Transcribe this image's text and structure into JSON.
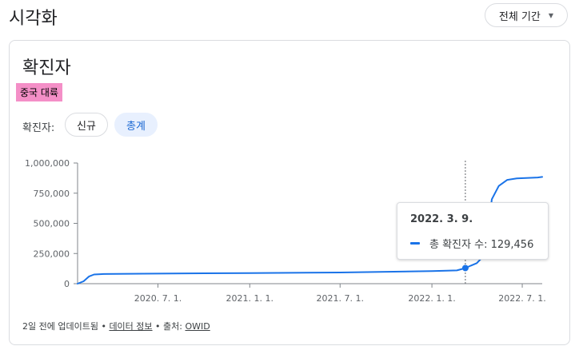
{
  "header": {
    "title": "시각화",
    "period_label": "전체 기간",
    "period_caret": "▼"
  },
  "card": {
    "title": "확진자",
    "region": "중국 대륙",
    "region_color": "#f48fc7",
    "filter_label": "확진자:",
    "chips": [
      {
        "label": "신규",
        "selected": false
      },
      {
        "label": "총계",
        "selected": true
      }
    ]
  },
  "tooltip": {
    "date": "2022. 3. 9.",
    "label": "총 확진자 수: 129,456"
  },
  "footer": {
    "updated": "2일 전에 업데이트됨",
    "sep1": " • ",
    "info_link": "데이터 정보",
    "sep2": " • 출처: ",
    "source_link": "OWID"
  },
  "chart_data": {
    "type": "line",
    "series": [
      {
        "name": "총 확진자 수",
        "color": "#1a73e8",
        "points": [
          [
            "2020-01-22",
            0
          ],
          [
            "2020-02-03",
            20000
          ],
          [
            "2020-02-14",
            60000
          ],
          [
            "2020-02-24",
            76000
          ],
          [
            "2020-03-15",
            80000
          ],
          [
            "2020-06-01",
            83000
          ],
          [
            "2020-10-01",
            86000
          ],
          [
            "2021-01-01",
            88000
          ],
          [
            "2021-07-01",
            93000
          ],
          [
            "2022-01-01",
            104000
          ],
          [
            "2022-02-20",
            110000
          ],
          [
            "2022-03-09",
            129456
          ],
          [
            "2022-03-20",
            150000
          ],
          [
            "2022-04-01",
            170000
          ],
          [
            "2022-04-10",
            210000
          ],
          [
            "2022-04-20",
            300000
          ],
          [
            "2022-04-25",
            500000
          ],
          [
            "2022-05-01",
            700000
          ],
          [
            "2022-05-15",
            810000
          ],
          [
            "2022-06-01",
            860000
          ],
          [
            "2022-06-20",
            872000
          ],
          [
            "2022-08-01",
            880000
          ],
          [
            "2022-08-10",
            885000
          ]
        ]
      }
    ],
    "highlight": {
      "x": "2022-03-09",
      "y": 129456
    },
    "y_ticks": [
      0,
      250000,
      500000,
      750000,
      1000000
    ],
    "y_tick_labels": [
      "0",
      "250,000",
      "500,000",
      "750,000",
      "1,000,000"
    ],
    "x_ticks": [
      "2020-07-01",
      "2021-01-01",
      "2021-07-01",
      "2022-01-01",
      "2022-07-01"
    ],
    "x_tick_labels": [
      "2020. 7. 1.",
      "2021. 1. 1.",
      "2021. 7. 1.",
      "2022. 1. 1.",
      "2022. 7. 1."
    ],
    "xlim": [
      "2020-01-22",
      "2022-08-10"
    ],
    "ylim": [
      0,
      1000000
    ],
    "grid": false
  }
}
